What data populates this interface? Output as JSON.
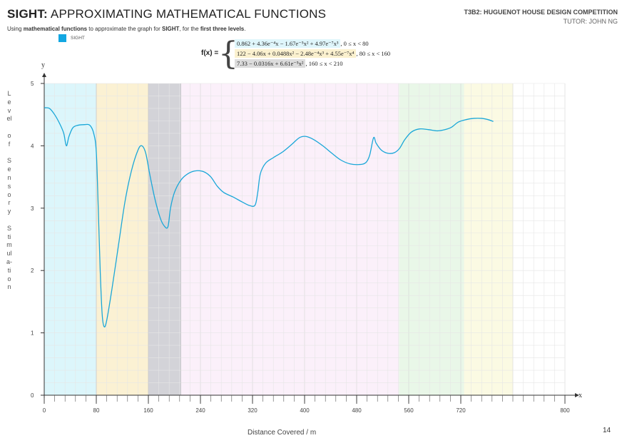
{
  "header": {
    "title_bold": "SIGHT:",
    "title_rest": " APPROXIMATING MATHEMATICAL FUNCTIONS",
    "subtitle_a": "Using ",
    "subtitle_b": "mathematical functions",
    "subtitle_c": " to approximate the graph for ",
    "subtitle_d": "SIGHT",
    "subtitle_e": ", for the ",
    "subtitle_f": "first three levels",
    "subtitle_g": ".",
    "competition": "T3B2: HUGUENOT HOUSE DESIGN COMPETITION",
    "tutor": "TUTOR: JOHN NG",
    "page_number": "14"
  },
  "legend": {
    "label": "SIGHT",
    "color": "#12a7e2"
  },
  "equations": {
    "fx_label": "f(x) =",
    "brace": "{",
    "piece1": "0.862 + 4.36e⁻⁴x − 1.67e⁻⁵x² + 4.97e⁻⁷x³",
    "range1": ", 0 ≤ x < 80",
    "piece2": "122 − 4.06x + 0.0488x² − 2.48e⁻⁴x³ + 4.55e⁻⁷x⁴",
    "range2": ", 80 ≤ x < 160",
    "piece3": "7.33 − 0.0316x + 6.61e⁻⁵x²",
    "range3": ", 160 ≤ x < 210",
    "highlight_colors": [
      "#dff6fb",
      "#fbf1cf",
      "#dcdcdc"
    ]
  },
  "chart_data": {
    "type": "line",
    "ylabel_letters": [
      "L",
      "e",
      "v",
      "el",
      "",
      "o",
      "f",
      "",
      "S",
      "e",
      "n",
      "s",
      "o",
      "r",
      "y",
      "",
      "S",
      "ti",
      "m",
      "ul",
      "a-",
      "ti",
      "o",
      "n"
    ],
    "xlabel": "Distance Covered / m",
    "x_axis_symbol": "x",
    "y_axis_symbol": "y",
    "ylim": [
      0,
      5
    ],
    "y_ticks": [
      0,
      1,
      2,
      3,
      4,
      5
    ],
    "x_tick_labels": [
      "0",
      "80",
      "160",
      "240",
      "320",
      "400",
      "480",
      "560",
      "720",
      "800"
    ],
    "grid": true,
    "bands": [
      {
        "range": [
          0,
          80
        ],
        "color": "#dcf6fb"
      },
      {
        "range": [
          80,
          160
        ],
        "color": "#fbf1d3"
      },
      {
        "range": [
          160,
          210
        ],
        "color": "#d3d3d8"
      },
      {
        "range": [
          210,
          545
        ],
        "color": "#fbf0fa"
      },
      {
        "range": [
          545,
          645
        ],
        "color": "#e9f7e8"
      },
      {
        "range": [
          645,
          720
        ],
        "color": "#fbfae3"
      }
    ],
    "series": [
      {
        "color": "#1aa7d8",
        "points": [
          [
            0,
            4.61
          ],
          [
            8,
            4.6
          ],
          [
            16,
            4.5
          ],
          [
            24,
            4.35
          ],
          [
            30,
            4.2
          ],
          [
            34,
            4.0
          ],
          [
            38,
            4.15
          ],
          [
            44,
            4.29
          ],
          [
            52,
            4.33
          ],
          [
            62,
            4.34
          ],
          [
            70,
            4.33
          ],
          [
            76,
            4.2
          ],
          [
            80,
            3.9
          ],
          [
            83,
            3.0
          ],
          [
            86,
            2.0
          ],
          [
            89,
            1.3
          ],
          [
            92,
            1.1
          ],
          [
            96,
            1.2
          ],
          [
            104,
            1.7
          ],
          [
            114,
            2.4
          ],
          [
            124,
            3.1
          ],
          [
            134,
            3.6
          ],
          [
            144,
            3.93
          ],
          [
            150,
            4.0
          ],
          [
            156,
            3.88
          ],
          [
            162,
            3.55
          ],
          [
            170,
            3.15
          ],
          [
            178,
            2.85
          ],
          [
            184,
            2.72
          ],
          [
            190,
            2.7
          ],
          [
            194,
            3.0
          ],
          [
            200,
            3.25
          ],
          [
            210,
            3.45
          ],
          [
            222,
            3.56
          ],
          [
            234,
            3.6
          ],
          [
            246,
            3.58
          ],
          [
            256,
            3.5
          ],
          [
            266,
            3.35
          ],
          [
            276,
            3.25
          ],
          [
            290,
            3.18
          ],
          [
            304,
            3.1
          ],
          [
            316,
            3.04
          ],
          [
            324,
            3.05
          ],
          [
            328,
            3.25
          ],
          [
            332,
            3.55
          ],
          [
            340,
            3.72
          ],
          [
            352,
            3.81
          ],
          [
            366,
            3.9
          ],
          [
            380,
            4.02
          ],
          [
            392,
            4.13
          ],
          [
            402,
            4.15
          ],
          [
            414,
            4.1
          ],
          [
            428,
            4.0
          ],
          [
            442,
            3.88
          ],
          [
            456,
            3.77
          ],
          [
            470,
            3.71
          ],
          [
            484,
            3.7
          ],
          [
            494,
            3.73
          ],
          [
            500,
            3.85
          ],
          [
            506,
            4.13
          ],
          [
            510,
            4.04
          ],
          [
            518,
            3.93
          ],
          [
            528,
            3.88
          ],
          [
            538,
            3.89
          ],
          [
            546,
            3.96
          ],
          [
            554,
            4.1
          ],
          [
            564,
            4.22
          ],
          [
            576,
            4.27
          ],
          [
            590,
            4.26
          ],
          [
            604,
            4.24
          ],
          [
            616,
            4.26
          ],
          [
            626,
            4.3
          ],
          [
            636,
            4.38
          ],
          [
            648,
            4.42
          ],
          [
            660,
            4.44
          ],
          [
            672,
            4.44
          ],
          [
            682,
            4.42
          ],
          [
            690,
            4.39
          ]
        ]
      }
    ]
  }
}
